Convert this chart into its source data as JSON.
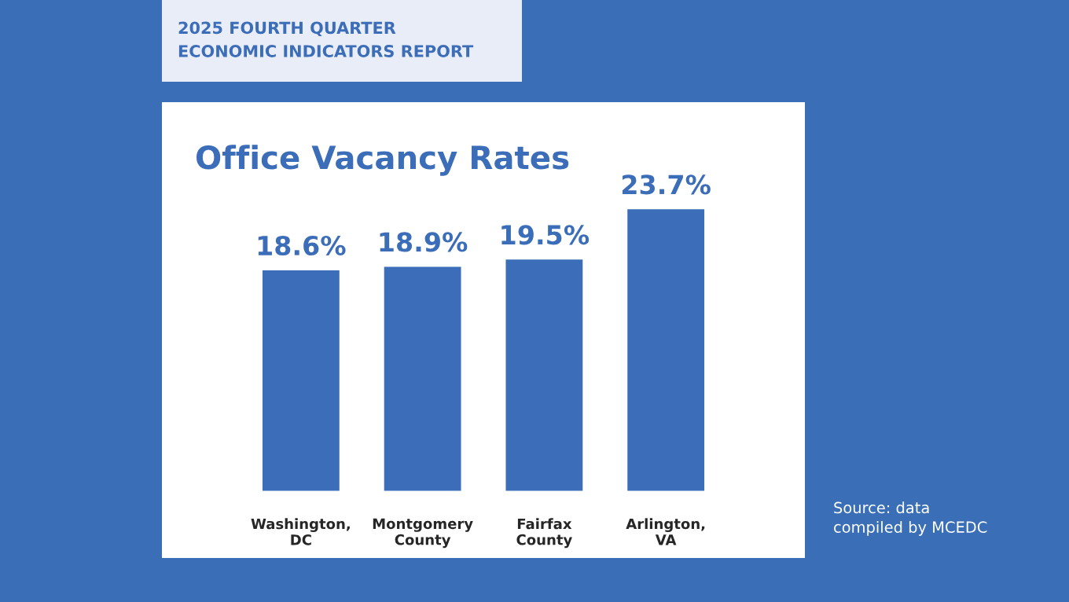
{
  "chart_data": {
    "type": "bar",
    "title": "Office Vacancy Rates",
    "subtitle": "2025 FOURTH QUARTER\nECONOMIC INDICATORS REPORT",
    "categories": [
      "Washington,\nDC",
      "Montgomery\nCounty",
      "Fairfax\nCounty",
      "Arlington,\nVA"
    ],
    "values": [
      18.6,
      18.9,
      19.5,
      23.7
    ],
    "value_labels": [
      "18.6%",
      "18.9%",
      "19.5%",
      "23.7%"
    ],
    "color": "#3b6db8",
    "annotations": [
      "Source: data\ncompiled by MCEDC"
    ],
    "tick_labels": "x",
    "grid": false,
    "legend": false
  }
}
